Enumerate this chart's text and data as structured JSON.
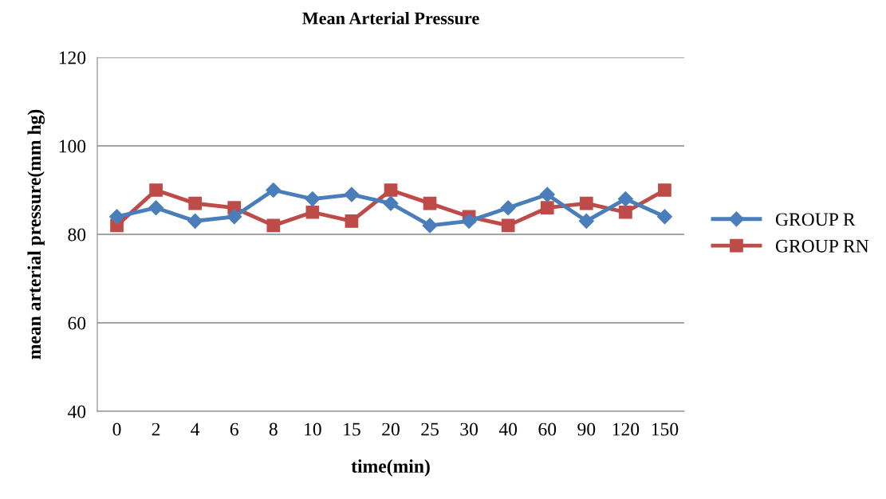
{
  "chart_data": {
    "type": "line",
    "title": "Mean Arterial Pressure",
    "xlabel": "time(min)",
    "ylabel": "mean arterial pressure(mm hg)",
    "categories": [
      "0",
      "2",
      "4",
      "6",
      "8",
      "10",
      "15",
      "20",
      "25",
      "30",
      "40",
      "60",
      "90",
      "120",
      "150"
    ],
    "series": [
      {
        "name": "GROUP R",
        "color": "#4a7ebb",
        "marker": "diamond",
        "values": [
          84,
          86,
          83,
          84,
          90,
          88,
          89,
          87,
          82,
          83,
          86,
          89,
          83,
          88,
          84
        ]
      },
      {
        "name": "GROUP RN",
        "color": "#be4b48",
        "marker": "square",
        "values": [
          82,
          90,
          87,
          86,
          82,
          85,
          83,
          90,
          87,
          84,
          82,
          86,
          87,
          85,
          90
        ]
      }
    ],
    "ylim": [
      40,
      120
    ],
    "yticks": [
      40,
      60,
      80,
      100,
      120
    ],
    "grid": "y",
    "legend": "right",
    "line_style": "solid"
  }
}
